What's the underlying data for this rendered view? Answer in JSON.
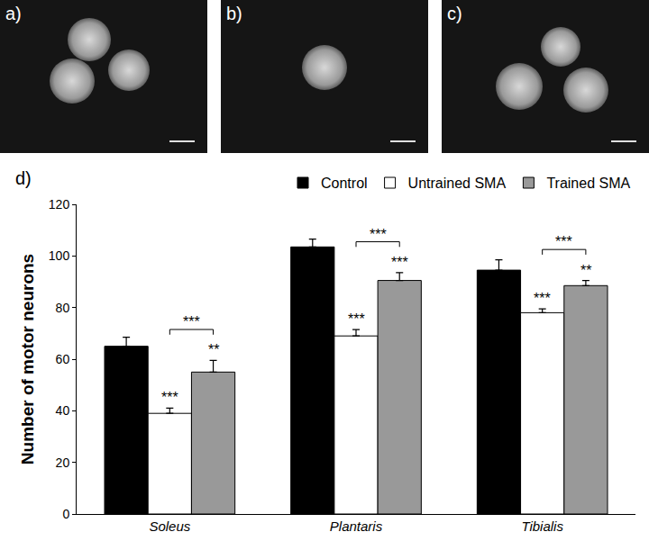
{
  "panels": {
    "labels": [
      "a)",
      "b)",
      "c)"
    ]
  },
  "chart_data": {
    "type": "bar",
    "panel_label": "d)",
    "categories": [
      "Soleus",
      "Plantaris",
      "Tibialis"
    ],
    "series": [
      {
        "name": "Control",
        "color": "#000000",
        "values": [
          65,
          103.5,
          94.5
        ],
        "error": [
          3.5,
          3,
          4
        ]
      },
      {
        "name": "Untrained SMA",
        "color": "#ffffff",
        "values": [
          39,
          69,
          78
        ],
        "error": [
          2,
          2.5,
          1.5
        ]
      },
      {
        "name": "Trained SMA",
        "color": "#999999",
        "values": [
          55,
          90.5,
          88.5
        ],
        "error": [
          4.5,
          3,
          2
        ]
      }
    ],
    "y_label": "Number of motor neurons",
    "ylim": [
      0,
      120
    ],
    "yticks": [
      0,
      20,
      40,
      60,
      80,
      100,
      120
    ],
    "grid": false,
    "legend": "top right",
    "significance": [
      {
        "category": "Soleus",
        "series": "Untrained SMA",
        "text": "***"
      },
      {
        "category": "Soleus",
        "series": "Trained SMA",
        "text": "**"
      },
      {
        "category": "Soleus",
        "between": [
          "Untrained SMA",
          "Trained SMA"
        ],
        "text": "***"
      },
      {
        "category": "Plantaris",
        "series": "Untrained SMA",
        "text": "***"
      },
      {
        "category": "Plantaris",
        "series": "Trained SMA",
        "text": "***"
      },
      {
        "category": "Plantaris",
        "between": [
          "Untrained SMA",
          "Trained SMA"
        ],
        "text": "***"
      },
      {
        "category": "Tibialis",
        "series": "Untrained SMA",
        "text": "***"
      },
      {
        "category": "Tibialis",
        "series": "Trained SMA",
        "text": "**"
      },
      {
        "category": "Tibialis",
        "between": [
          "Untrained SMA",
          "Trained SMA"
        ],
        "text": "***"
      }
    ]
  }
}
